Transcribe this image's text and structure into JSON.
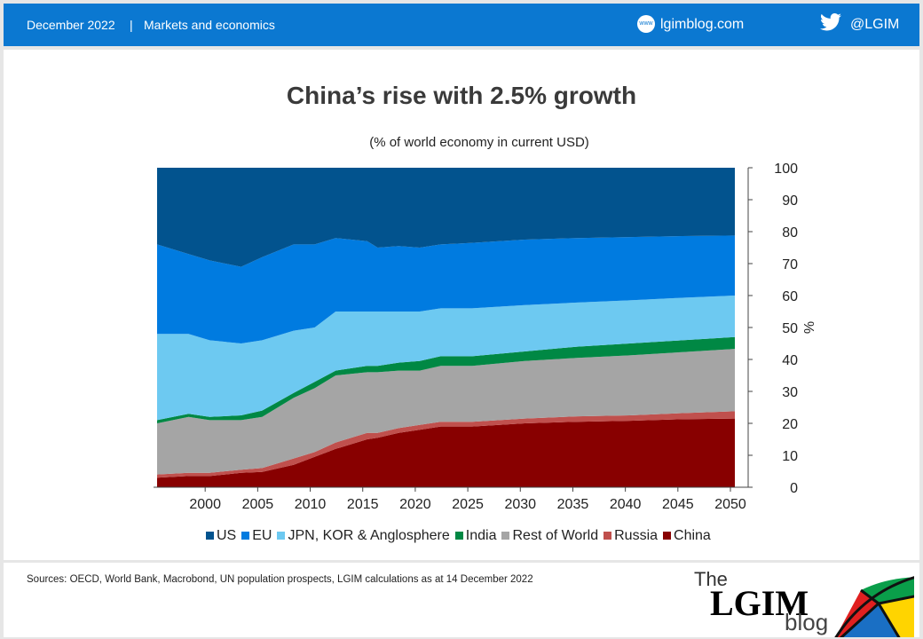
{
  "header": {
    "date": "December 2022",
    "separator": "|",
    "category": "Markets and economics",
    "site": "lgimblog.com",
    "twitter": "@LGIM",
    "www_icon": "www",
    "bird": "twitter-icon"
  },
  "chart_data": {
    "type": "area",
    "stacked": true,
    "title": "China’s rise with 2.5% growth",
    "subtitle": "(% of world economy in current USD)",
    "ylabel": "%",
    "ylim": [
      0,
      100
    ],
    "yticks": [
      0,
      10,
      20,
      30,
      40,
      50,
      60,
      70,
      80,
      90,
      100
    ],
    "xlim": [
      1995,
      2050
    ],
    "xticks": [
      2000,
      2005,
      2010,
      2015,
      2020,
      2025,
      2030,
      2035,
      2040,
      2045,
      2050
    ],
    "legend": "bottom",
    "grid": false,
    "x": [
      1995,
      1998,
      2000,
      2003,
      2005,
      2008,
      2010,
      2012,
      2015,
      2016,
      2018,
      2020,
      2022,
      2025,
      2030,
      2035,
      2040,
      2045,
      2050
    ],
    "series": [
      {
        "name": "China",
        "color": "#880000",
        "values": [
          3,
          3.5,
          3.5,
          4.5,
          4.8,
          7,
          9.5,
          12,
          15,
          15.5,
          17,
          18,
          19,
          19,
          20,
          20.5,
          20.8,
          21.3,
          21.5
        ]
      },
      {
        "name": "Russia",
        "color": "#C0504D",
        "values": [
          1,
          1,
          1,
          1,
          1.2,
          2,
          1.5,
          2,
          2,
          1.5,
          1.5,
          1.5,
          1.5,
          1.5,
          1.5,
          1.7,
          1.7,
          1.9,
          2.3
        ]
      },
      {
        "name": "Rest of World",
        "color": "#A5A5A5",
        "values": [
          16,
          17.5,
          16.5,
          15.5,
          16,
          19,
          20,
          21,
          19,
          19,
          18,
          17,
          17.5,
          17.5,
          18,
          18.3,
          18.8,
          19.1,
          19.5
        ]
      },
      {
        "name": "India",
        "color": "#008844",
        "values": [
          1,
          1,
          1,
          1.5,
          2,
          1.5,
          2,
          1.5,
          2,
          2,
          2.5,
          3,
          3,
          3,
          3,
          3.5,
          3.7,
          3.7,
          3.7
        ]
      },
      {
        "name": "JPN, KOR & Anglosphere",
        "color": "#6DC9F1",
        "values": [
          27,
          25,
          24,
          22.5,
          22,
          19.5,
          17,
          18.5,
          17,
          17,
          16,
          15.5,
          15,
          15,
          14.5,
          13.8,
          13.5,
          13.3,
          13
        ]
      },
      {
        "name": "EU",
        "color": "#007BE0",
        "values": [
          28,
          25,
          25,
          24,
          26,
          27,
          26,
          23,
          22,
          20,
          20.5,
          20,
          20,
          20.5,
          20.5,
          20.2,
          19.8,
          19.3,
          18.8
        ]
      },
      {
        "name": "US",
        "color": "#02538E",
        "values": [
          24,
          27,
          29,
          31,
          28,
          24,
          24,
          22,
          23,
          25,
          24.5,
          25,
          24,
          23.5,
          22.5,
          22,
          21.7,
          21.4,
          21.2
        ]
      }
    ],
    "legend_order": [
      "US",
      "EU",
      "JPN, KOR & Anglosphere",
      "India",
      "Rest of World",
      "Russia",
      "China"
    ]
  },
  "footer": {
    "source": "Sources: OECD, World Bank, Macrobond, UN population prospects, LGIM calculations as at 14 December 2022",
    "logo_the": "The",
    "logo_lgim": "LGIM",
    "logo_blog": "blog"
  }
}
